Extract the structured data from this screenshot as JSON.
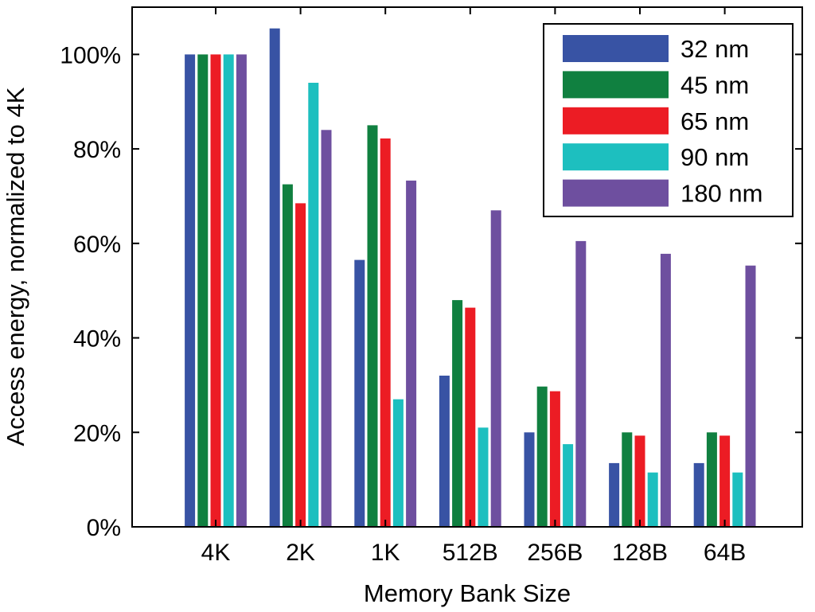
{
  "chart_data": {
    "type": "bar",
    "title": "",
    "xlabel": "Memory Bank Size",
    "ylabel": "Access energy, normalized to 4K",
    "categories": [
      "4K",
      "2K",
      "1K",
      "512B",
      "256B",
      "128B",
      "64B"
    ],
    "ylim": [
      0,
      1.1
    ],
    "yticks": [
      0,
      0.2,
      0.4,
      0.6,
      0.8,
      1.0
    ],
    "ytick_labels": [
      "0%",
      "20%",
      "40%",
      "60%",
      "80%",
      "100%"
    ],
    "grid": false,
    "legend_position": "top-right",
    "series": [
      {
        "name": "32 nm",
        "color": "#3853a4",
        "values": [
          1.0,
          1.055,
          0.565,
          0.32,
          0.2,
          0.135,
          0.135
        ]
      },
      {
        "name": "45 nm",
        "color": "#108040",
        "values": [
          1.0,
          0.725,
          0.85,
          0.48,
          0.297,
          0.2,
          0.2
        ]
      },
      {
        "name": "65 nm",
        "color": "#ec1c24",
        "values": [
          1.0,
          0.685,
          0.822,
          0.464,
          0.287,
          0.193,
          0.193
        ]
      },
      {
        "name": "90 nm",
        "color": "#1dbfbf",
        "values": [
          1.0,
          0.94,
          0.27,
          0.21,
          0.175,
          0.115,
          0.115
        ]
      },
      {
        "name": "180 nm",
        "color": "#6e4f9f",
        "values": [
          1.0,
          0.84,
          0.733,
          0.67,
          0.605,
          0.578,
          0.553
        ]
      }
    ]
  }
}
